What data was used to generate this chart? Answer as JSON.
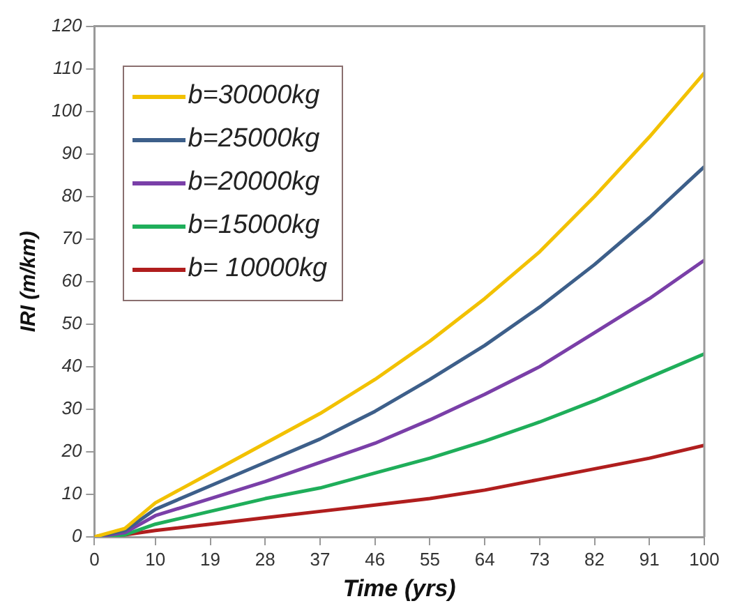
{
  "chart_data": {
    "type": "line",
    "xlabel": "Time (yrs)",
    "ylabel": "IRI (m/km)",
    "x": [
      0,
      5,
      10,
      19,
      28,
      37,
      46,
      55,
      64,
      73,
      82,
      91,
      100
    ],
    "xlim": [
      0,
      100
    ],
    "xticks": [
      0,
      10,
      19,
      28,
      37,
      46,
      55,
      64,
      73,
      82,
      91,
      100
    ],
    "ylim": [
      0,
      120
    ],
    "yticks": [
      0,
      10,
      20,
      30,
      40,
      50,
      60,
      70,
      80,
      90,
      100,
      110,
      120
    ],
    "grid": false,
    "legend": "top left",
    "marker": "none",
    "line_style": "solid",
    "series": [
      {
        "name": "b=30000kg",
        "color": "#f2c100",
        "values": [
          0,
          2,
          8,
          15,
          22,
          29,
          37,
          46,
          56,
          67,
          80,
          94,
          109
        ]
      },
      {
        "name": "b=25000kg",
        "color": "#3d5f8a",
        "values": [
          0,
          1.5,
          6.5,
          12,
          17.5,
          23,
          29.5,
          37,
          45,
          54,
          64,
          75,
          87
        ]
      },
      {
        "name": "b=20000kg",
        "color": "#7a3fa8",
        "values": [
          0,
          1,
          5,
          9,
          13,
          17.5,
          22,
          27.5,
          33.5,
          40,
          48,
          56,
          65
        ]
      },
      {
        "name": "b=15000kg",
        "color": "#1fae5a",
        "values": [
          0,
          0.5,
          3,
          6,
          9,
          11.5,
          15,
          18.5,
          22.5,
          27,
          32,
          37.5,
          43
        ]
      },
      {
        "name": "b= 10000kg",
        "color": "#b01e1e",
        "values": [
          0,
          0.5,
          1.5,
          3,
          4.5,
          6,
          7.5,
          9,
          11,
          13.5,
          16,
          18.5,
          21.5
        ]
      }
    ]
  }
}
